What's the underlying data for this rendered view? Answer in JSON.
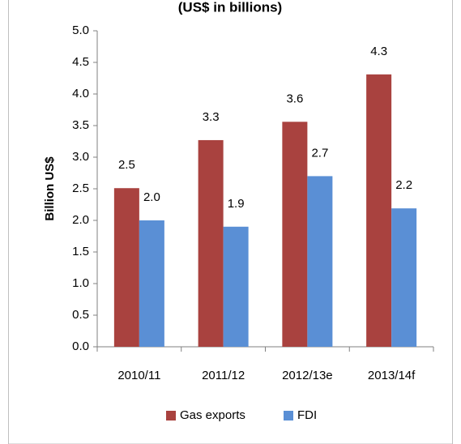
{
  "chart_data": {
    "type": "bar",
    "title": "(US$ in billions)",
    "y_axis_label": "Billion US$",
    "categories": [
      "2010/11",
      "2011/12",
      "2012/13e",
      "2013/14f"
    ],
    "series": [
      {
        "name": "Gas exports",
        "color": "#a9423f",
        "values": [
          2.51,
          3.27,
          3.56,
          4.31
        ],
        "value_labels": [
          "2.5",
          "3.3",
          "3.6",
          "4.3"
        ]
      },
      {
        "name": "FDI",
        "color": "#5a8fd5",
        "values": [
          2.0,
          1.9,
          2.7,
          2.19
        ],
        "value_labels": [
          "2.0",
          "1.9",
          "2.7",
          "2.2"
        ]
      }
    ],
    "ylim": [
      0,
      5
    ],
    "yticks": [
      {
        "value": 0,
        "label": "0.0"
      },
      {
        "value": 0.5,
        "label": "0.5"
      },
      {
        "value": 1,
        "label": "1.0"
      },
      {
        "value": 1.5,
        "label": "1.5"
      },
      {
        "value": 2,
        "label": "2.0"
      },
      {
        "value": 2.5,
        "label": "2.5"
      },
      {
        "value": 3,
        "label": "3.0"
      },
      {
        "value": 3.5,
        "label": "3.5"
      },
      {
        "value": 4,
        "label": "4.0"
      },
      {
        "value": 4.5,
        "label": "4.5"
      },
      {
        "value": 5,
        "label": "5.0"
      }
    ],
    "legend": "bottom"
  }
}
